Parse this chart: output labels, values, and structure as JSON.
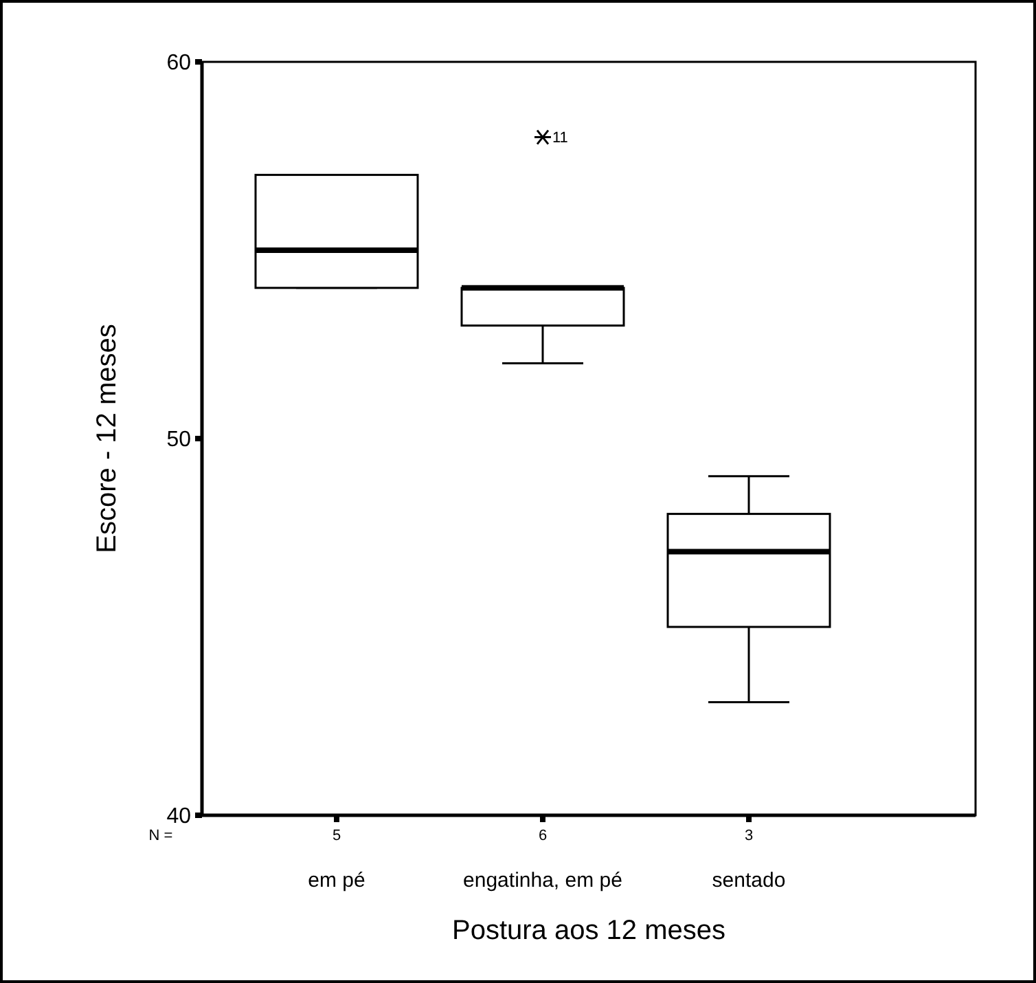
{
  "chart_data": {
    "type": "box",
    "xlabel": "Postura aos 12 meses",
    "ylabel": "Escore - 12 meses",
    "categories": [
      "em pé",
      "engatinha, em pé",
      "sentado"
    ],
    "boxes": [
      {
        "low": 54,
        "q1": 54,
        "median": 55,
        "q3": 57,
        "high": 57
      },
      {
        "low": 52,
        "q1": 53,
        "median": 54,
        "q3": 54,
        "high": 54,
        "outliers": [
          58
        ]
      },
      {
        "low": 43,
        "q1": 45,
        "median": 47,
        "q3": 48,
        "high": 49
      }
    ],
    "ylim": [
      40,
      60
    ],
    "yticks": [
      40,
      50,
      60
    ],
    "grid": false,
    "annotations": [
      "N =",
      "5",
      "6",
      "3",
      "11"
    ]
  }
}
